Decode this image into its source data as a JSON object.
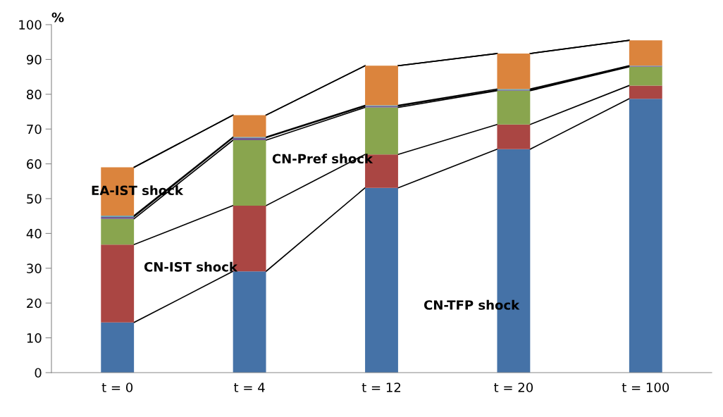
{
  "chart_data": {
    "type": "bar",
    "stacked": true,
    "ylabel": "%",
    "categories": [
      "t = 0",
      "t = 4",
      "t = 12",
      "t = 20",
      "t = 100"
    ],
    "series": [
      {
        "name": "CN-TFP shock",
        "color": "#4572a7",
        "values": [
          14.4,
          29.1,
          53.1,
          64.2,
          78.7
        ]
      },
      {
        "name": "CN-IST shock",
        "color": "#aa4643",
        "values": [
          22.4,
          18.9,
          9.6,
          7.1,
          3.8
        ]
      },
      {
        "name": "CN-Pref shock",
        "color": "#89a54e",
        "values": [
          7.4,
          18.8,
          13.5,
          9.7,
          5.4
        ]
      },
      {
        "color": "#71588f",
        "values": [
          0.6,
          0.7,
          0.4,
          0.2,
          0.2
        ]
      },
      {
        "color": "#4198af",
        "values": [
          0.3,
          0.2,
          0.2,
          0.3,
          0.1
        ]
      },
      {
        "name": "EA-IST shock",
        "color": "#db843d",
        "values": [
          13.9,
          6.3,
          11.4,
          10.2,
          7.3
        ]
      },
      {
        "color": "#b0c4de",
        "values": [
          null,
          null,
          null,
          null,
          null
        ]
      }
    ],
    "ylim": [
      0,
      100
    ],
    "yticks": [
      0,
      10,
      20,
      30,
      40,
      50,
      60,
      70,
      80,
      90,
      100
    ],
    "grid": false
  }
}
